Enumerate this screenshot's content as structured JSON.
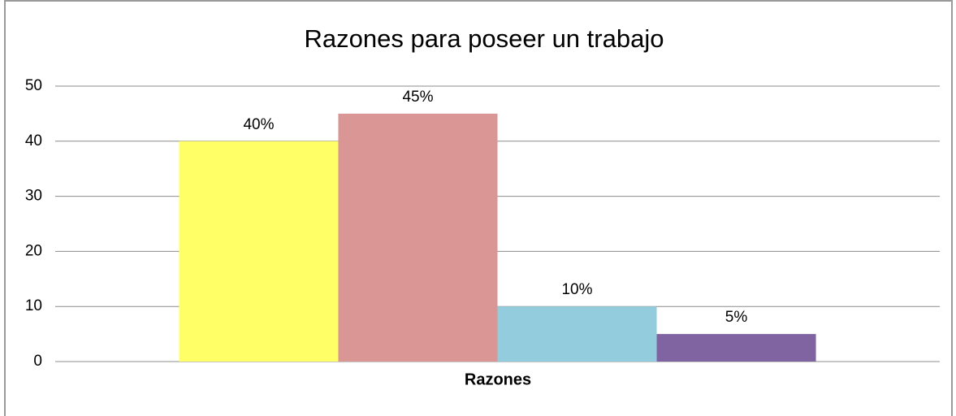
{
  "chart_data": {
    "type": "bar",
    "title": "Razones para poseer un trabajo",
    "xlabel": "Razones",
    "categories": [
      null
    ],
    "series": [
      {
        "color": "#ffff66",
        "values": [
          40
        ],
        "value_labels": [
          "40%"
        ]
      },
      {
        "color": "#d99694",
        "values": [
          45
        ],
        "value_labels": [
          "45%"
        ]
      },
      {
        "color": "#93cddd",
        "values": [
          10
        ],
        "value_labels": [
          "10%"
        ]
      },
      {
        "color": "#8064a2",
        "values": [
          5
        ],
        "value_labels": [
          "5%"
        ]
      }
    ],
    "ylim": [
      0,
      50
    ],
    "yticks": [
      0,
      10,
      20,
      30,
      40,
      50
    ],
    "grid": true
  }
}
